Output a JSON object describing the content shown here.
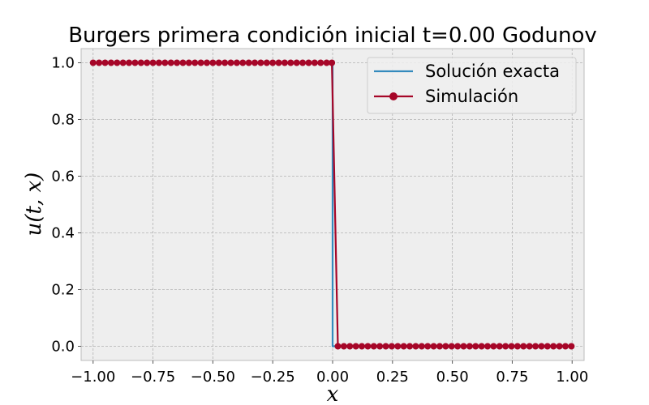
{
  "chart_data": {
    "type": "line",
    "title": "Burgers primera condición inicial t=0.00 Godunov",
    "xlabel": "x",
    "ylabel": "u(t, x)",
    "xlim": [
      -1.05,
      1.05
    ],
    "ylim": [
      -0.05,
      1.05
    ],
    "xticks": [
      -1.0,
      -0.75,
      -0.5,
      -0.25,
      0.0,
      0.25,
      0.5,
      0.75,
      1.0
    ],
    "xtick_labels": [
      "−1.00",
      "−0.75",
      "−0.50",
      "−0.25",
      "0.00",
      "0.25",
      "0.50",
      "0.75",
      "1.00"
    ],
    "yticks": [
      0.0,
      0.2,
      0.4,
      0.6,
      0.8,
      1.0
    ],
    "ytick_labels": [
      "0.0",
      "0.2",
      "0.4",
      "0.6",
      "0.8",
      "1.0"
    ],
    "grid": true,
    "legend_position": "top-right",
    "series": [
      {
        "name": "Solución exacta",
        "color": "#348ABD",
        "marker": "none",
        "x": [
          -1.0,
          0.0,
          0.0,
          1.0
        ],
        "y": [
          1,
          1,
          0,
          0
        ]
      },
      {
        "name": "Simulación",
        "color": "#A60628",
        "marker": "circle",
        "x": [
          -1.0,
          -0.975,
          -0.95,
          -0.925,
          -0.9,
          -0.875,
          -0.85,
          -0.825,
          -0.8,
          -0.775,
          -0.75,
          -0.725,
          -0.7,
          -0.675,
          -0.65,
          -0.625,
          -0.6,
          -0.575,
          -0.55,
          -0.525,
          -0.5,
          -0.475,
          -0.45,
          -0.425,
          -0.4,
          -0.375,
          -0.35,
          -0.325,
          -0.3,
          -0.275,
          -0.25,
          -0.225,
          -0.2,
          -0.175,
          -0.15,
          -0.125,
          -0.1,
          -0.075,
          -0.05,
          -0.025,
          -0.003,
          0.022,
          0.047,
          0.072,
          0.097,
          0.122,
          0.147,
          0.172,
          0.197,
          0.222,
          0.247,
          0.272,
          0.297,
          0.322,
          0.347,
          0.372,
          0.397,
          0.422,
          0.447,
          0.472,
          0.497,
          0.522,
          0.547,
          0.572,
          0.597,
          0.622,
          0.647,
          0.672,
          0.697,
          0.722,
          0.747,
          0.772,
          0.797,
          0.822,
          0.847,
          0.872,
          0.897,
          0.922,
          0.947,
          0.972,
          0.997
        ],
        "y": [
          1,
          1,
          1,
          1,
          1,
          1,
          1,
          1,
          1,
          1,
          1,
          1,
          1,
          1,
          1,
          1,
          1,
          1,
          1,
          1,
          1,
          1,
          1,
          1,
          1,
          1,
          1,
          1,
          1,
          1,
          1,
          1,
          1,
          1,
          1,
          1,
          1,
          1,
          1,
          1,
          1,
          0,
          0,
          0,
          0,
          0,
          0,
          0,
          0,
          0,
          0,
          0,
          0,
          0,
          0,
          0,
          0,
          0,
          0,
          0,
          0,
          0,
          0,
          0,
          0,
          0,
          0,
          0,
          0,
          0,
          0,
          0,
          0,
          0,
          0,
          0,
          0,
          0,
          0,
          0,
          0
        ]
      }
    ]
  }
}
